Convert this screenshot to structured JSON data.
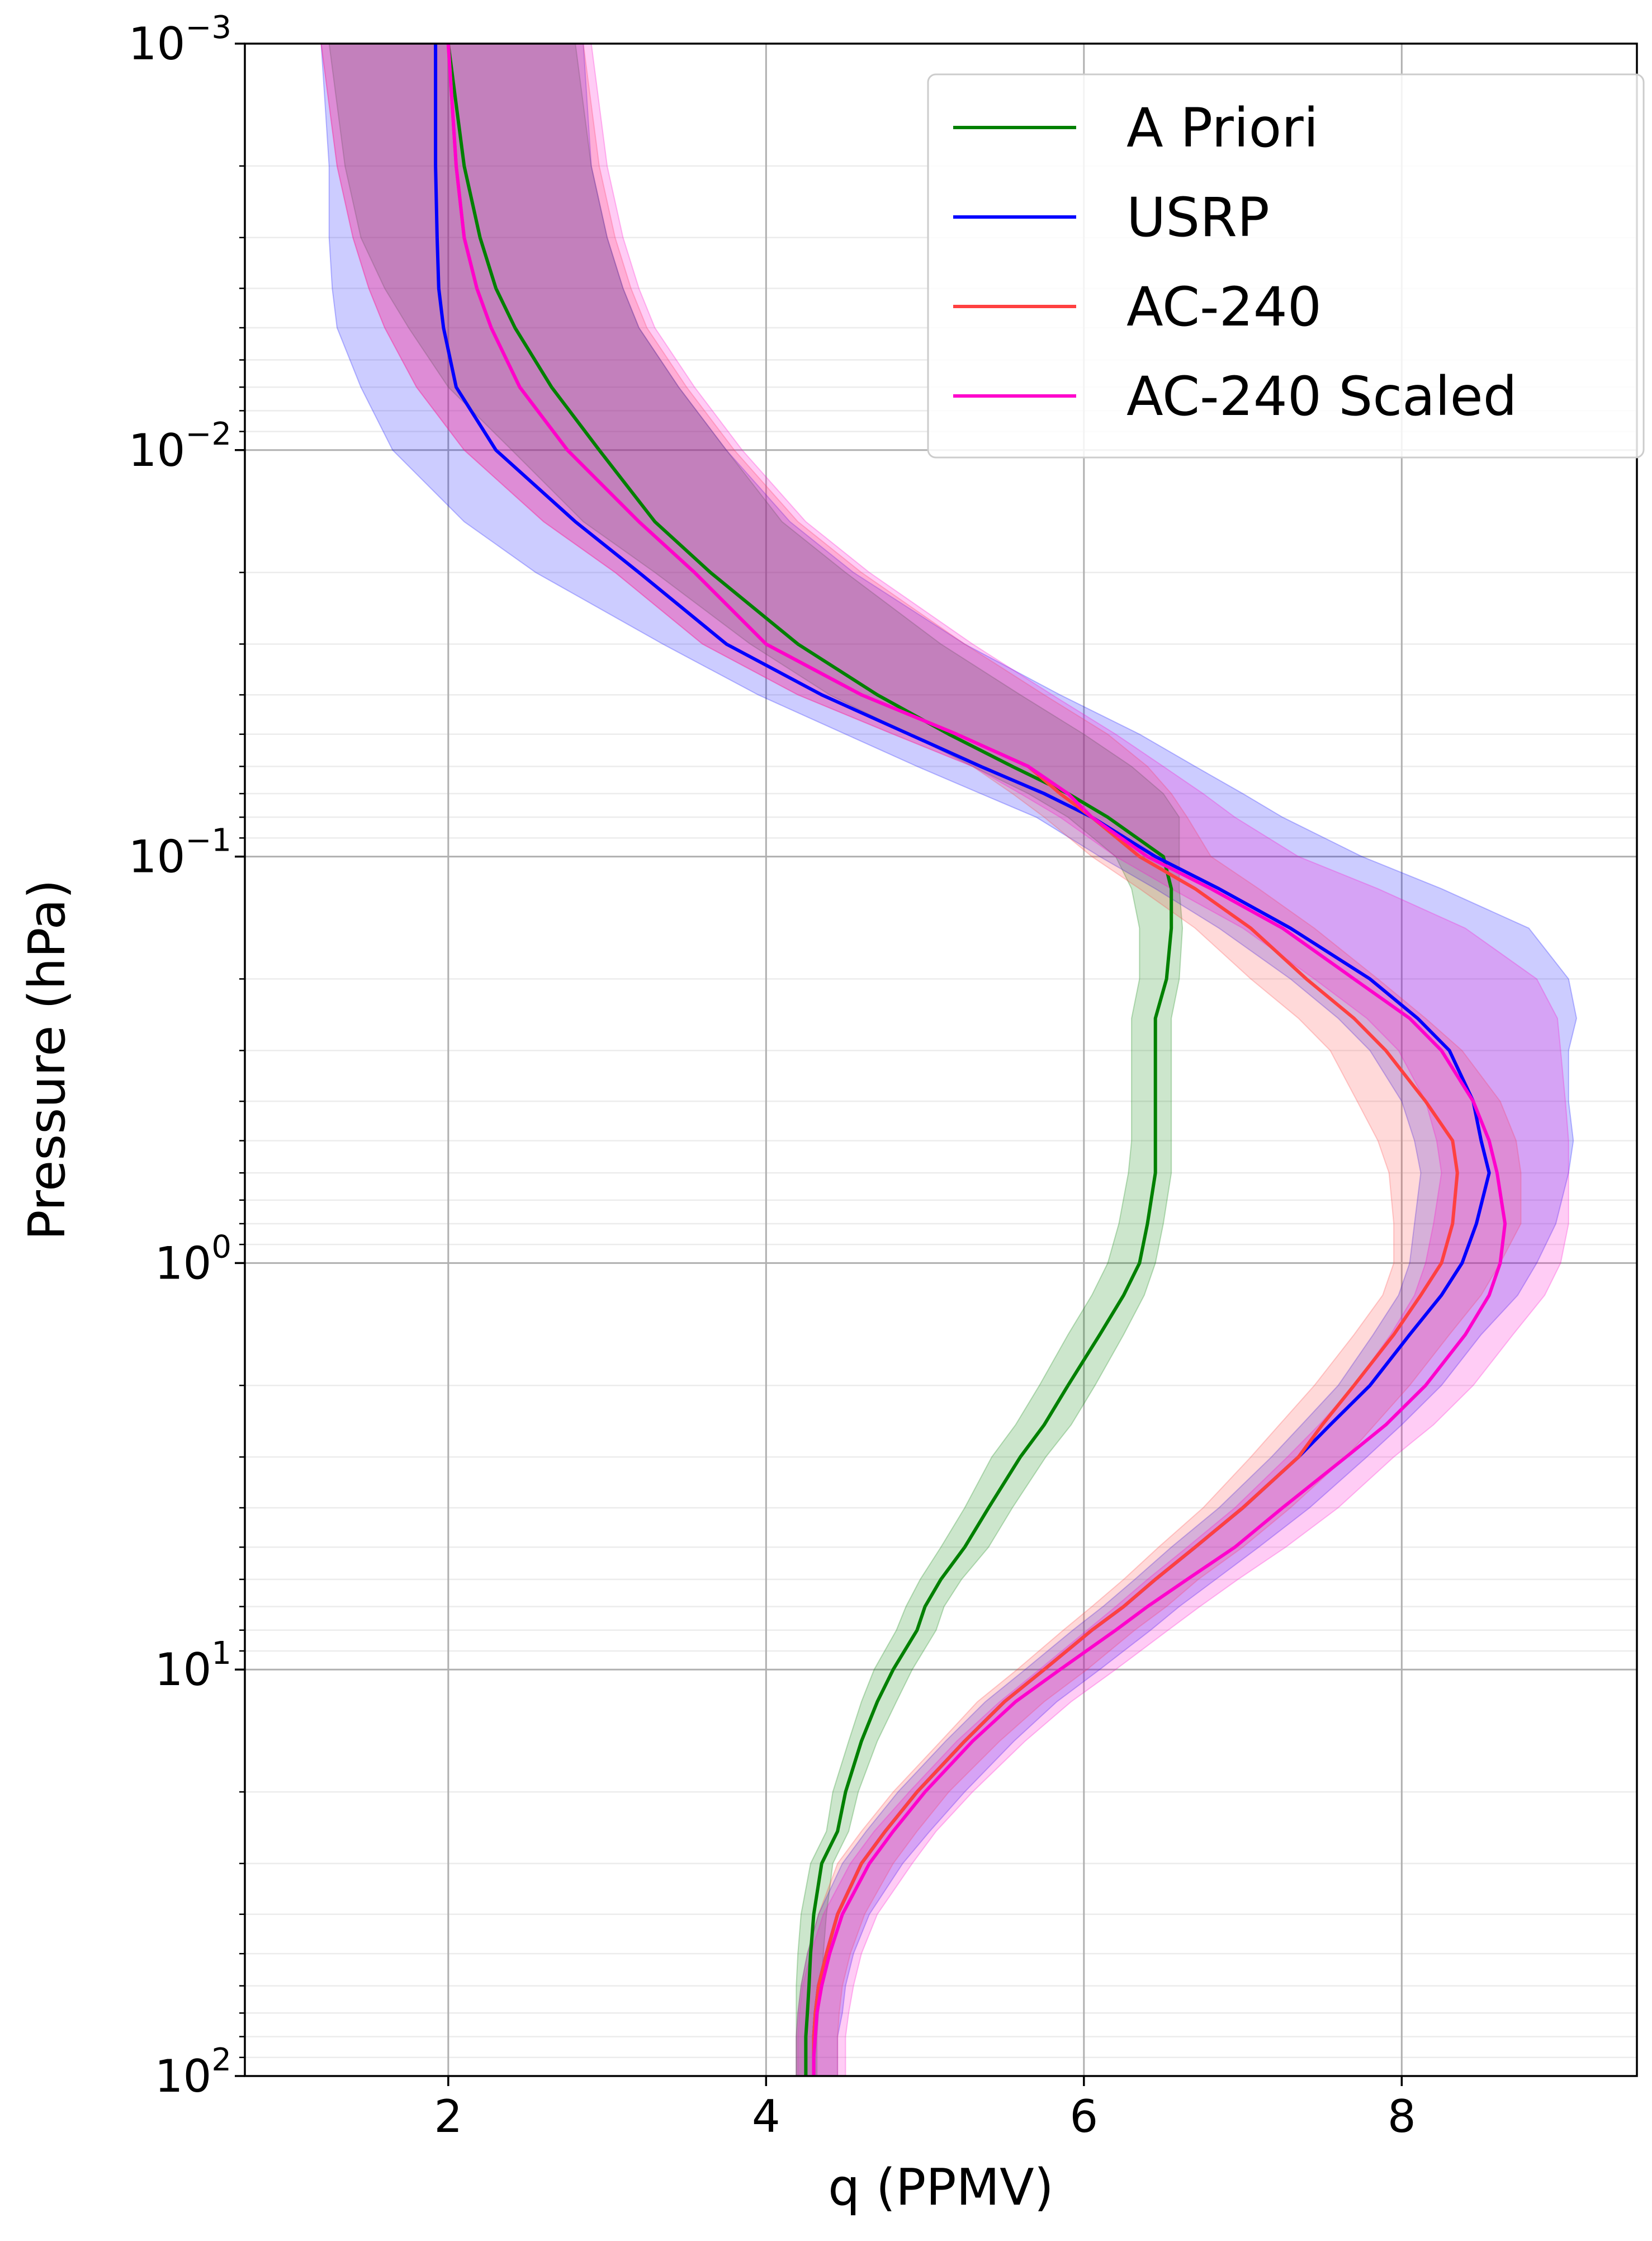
{
  "chart_data": {
    "type": "line",
    "xlabel": "q (PPMV)",
    "ylabel": "Pressure (hPa)",
    "xlim": [
      0.72,
      9.48
    ],
    "ylim": [
      100,
      0.001
    ],
    "y_scale": "log",
    "grid": true,
    "legend_position": "top-right",
    "x_ticks": [
      2,
      4,
      6,
      8
    ],
    "y_tick_values": [
      0.001,
      0.01,
      0.1,
      1,
      10,
      100
    ],
    "y_tick_exponents": [
      "−3",
      "−2",
      "−1",
      "0",
      "1",
      "2"
    ],
    "y_tick_base": "10",
    "pressure": [
      0.001,
      0.002,
      0.003,
      0.004,
      0.005,
      0.007,
      0.01,
      0.015,
      0.02,
      0.03,
      0.04,
      0.05,
      0.06,
      0.07,
      0.08,
      0.1,
      0.12,
      0.15,
      0.2,
      0.25,
      0.3,
      0.4,
      0.5,
      0.6,
      0.8,
      1,
      1.2,
      1.5,
      2,
      2.5,
      3,
      4,
      5,
      6,
      7,
      8,
      10,
      12,
      15,
      20,
      25,
      30,
      40,
      50,
      60,
      70,
      80,
      90,
      100
    ],
    "series": [
      {
        "name": "A Priori",
        "color": "#008000",
        "values": [
          2.0,
          2.1,
          2.2,
          2.3,
          2.42,
          2.65,
          2.95,
          3.3,
          3.65,
          4.2,
          4.7,
          5.15,
          5.55,
          5.9,
          6.15,
          6.5,
          6.55,
          6.55,
          6.52,
          6.45,
          6.45,
          6.45,
          6.45,
          6.45,
          6.4,
          6.35,
          6.25,
          6.1,
          5.9,
          5.75,
          5.6,
          5.4,
          5.25,
          5.1,
          5.0,
          4.95,
          4.8,
          4.7,
          4.6,
          4.5,
          4.45,
          4.35,
          4.3,
          4.28,
          4.27,
          4.26,
          4.25,
          4.25,
          4.25
        ],
        "band_low": [
          1.25,
          1.35,
          1.45,
          1.6,
          1.75,
          2.0,
          2.4,
          2.85,
          3.3,
          3.9,
          4.4,
          4.9,
          5.3,
          5.65,
          5.9,
          6.2,
          6.3,
          6.35,
          6.35,
          6.3,
          6.3,
          6.3,
          6.3,
          6.28,
          6.22,
          6.15,
          6.05,
          5.9,
          5.72,
          5.57,
          5.42,
          5.25,
          5.1,
          4.97,
          4.88,
          4.82,
          4.68,
          4.6,
          4.52,
          4.42,
          4.38,
          4.28,
          4.22,
          4.2,
          4.19,
          4.19,
          4.19,
          4.19,
          4.19
        ],
        "band_high": [
          2.8,
          2.9,
          3.0,
          3.1,
          3.2,
          3.45,
          3.75,
          4.1,
          4.5,
          5.1,
          5.6,
          6.0,
          6.3,
          6.5,
          6.6,
          6.6,
          6.6,
          6.62,
          6.6,
          6.55,
          6.55,
          6.55,
          6.55,
          6.55,
          6.5,
          6.45,
          6.38,
          6.25,
          6.07,
          5.92,
          5.76,
          5.55,
          5.4,
          5.23,
          5.12,
          5.07,
          4.92,
          4.82,
          4.7,
          4.58,
          4.52,
          4.42,
          4.38,
          4.36,
          4.35,
          4.33,
          4.32,
          4.32,
          4.32
        ]
      },
      {
        "name": "USRP",
        "color": "#0000ff",
        "values": [
          1.92,
          1.92,
          1.93,
          1.94,
          1.97,
          2.05,
          2.3,
          2.8,
          3.2,
          3.75,
          4.35,
          4.9,
          5.35,
          5.75,
          6.05,
          6.45,
          6.85,
          7.3,
          7.8,
          8.1,
          8.3,
          8.45,
          8.5,
          8.55,
          8.47,
          8.38,
          8.25,
          8.05,
          7.8,
          7.55,
          7.35,
          7.0,
          6.7,
          6.45,
          6.25,
          6.05,
          5.75,
          5.5,
          5.25,
          4.95,
          4.75,
          4.6,
          4.45,
          4.38,
          4.33,
          4.31,
          4.3,
          4.3,
          4.3
        ],
        "band_low": [
          1.2,
          1.25,
          1.25,
          1.27,
          1.3,
          1.45,
          1.65,
          2.1,
          2.55,
          3.35,
          3.95,
          4.5,
          4.95,
          5.35,
          5.7,
          6.1,
          6.45,
          6.85,
          7.3,
          7.6,
          7.8,
          8.0,
          8.08,
          8.12,
          8.08,
          8.05,
          7.98,
          7.82,
          7.6,
          7.37,
          7.18,
          6.85,
          6.55,
          6.32,
          6.12,
          5.93,
          5.63,
          5.38,
          5.13,
          4.83,
          4.63,
          4.48,
          4.33,
          4.26,
          4.22,
          4.2,
          4.19,
          4.19,
          4.19
        ],
        "band_high": [
          2.85,
          2.9,
          3.0,
          3.1,
          3.2,
          3.45,
          3.75,
          4.15,
          4.55,
          5.25,
          5.85,
          6.35,
          6.7,
          7.0,
          7.25,
          7.75,
          8.25,
          8.8,
          9.05,
          9.1,
          9.05,
          9.05,
          9.08,
          9.05,
          8.97,
          8.85,
          8.73,
          8.5,
          8.25,
          8.0,
          7.78,
          7.42,
          7.1,
          6.83,
          6.6,
          6.42,
          6.1,
          5.83,
          5.56,
          5.25,
          5.03,
          4.86,
          4.65,
          4.55,
          4.5,
          4.48,
          4.45,
          4.45,
          4.45
        ]
      },
      {
        "name": "AC-240",
        "color": "#ff4040",
        "values": [
          2.0,
          2.05,
          2.1,
          2.18,
          2.27,
          2.45,
          2.75,
          3.2,
          3.55,
          4.0,
          4.6,
          5.2,
          5.65,
          5.85,
          6.05,
          6.35,
          6.7,
          7.05,
          7.4,
          7.7,
          7.9,
          8.15,
          8.32,
          8.35,
          8.32,
          8.25,
          8.12,
          7.95,
          7.7,
          7.5,
          7.35,
          7.0,
          6.7,
          6.45,
          6.25,
          6.05,
          5.75,
          5.5,
          5.25,
          4.95,
          4.75,
          4.6,
          4.45,
          4.38,
          4.33,
          4.31,
          4.3,
          4.3,
          4.3
        ],
        "band_low": [
          1.2,
          1.3,
          1.4,
          1.5,
          1.6,
          1.8,
          2.1,
          2.6,
          3.05,
          3.6,
          4.2,
          4.8,
          5.3,
          5.55,
          5.75,
          6.05,
          6.35,
          6.7,
          7.05,
          7.35,
          7.55,
          7.72,
          7.85,
          7.92,
          7.95,
          7.95,
          7.88,
          7.7,
          7.45,
          7.23,
          7.05,
          6.75,
          6.47,
          6.25,
          6.05,
          5.87,
          5.58,
          5.33,
          5.1,
          4.8,
          4.6,
          4.45,
          4.33,
          4.26,
          4.22,
          4.2,
          4.19,
          4.19,
          4.19
        ],
        "band_high": [
          2.85,
          2.95,
          3.05,
          3.15,
          3.25,
          3.5,
          3.8,
          4.2,
          4.6,
          5.25,
          5.75,
          6.15,
          6.4,
          6.55,
          6.65,
          6.8,
          7.1,
          7.45,
          7.85,
          8.15,
          8.38,
          8.62,
          8.72,
          8.75,
          8.75,
          8.62,
          8.5,
          8.3,
          8.05,
          7.83,
          7.65,
          7.3,
          7.0,
          6.72,
          6.52,
          6.32,
          6.02,
          5.75,
          5.47,
          5.15,
          4.95,
          4.8,
          4.62,
          4.53,
          4.48,
          4.46,
          4.45,
          4.45,
          4.45
        ]
      },
      {
        "name": "AC-240 Scaled",
        "color": "#ff00cc",
        "values": [
          2.0,
          2.05,
          2.1,
          2.18,
          2.27,
          2.45,
          2.75,
          3.2,
          3.55,
          4.0,
          4.6,
          5.2,
          5.65,
          5.9,
          6.05,
          6.4,
          6.8,
          7.25,
          7.7,
          8.05,
          8.25,
          8.45,
          8.55,
          8.6,
          8.65,
          8.62,
          8.55,
          8.4,
          8.15,
          7.9,
          7.65,
          7.25,
          6.95,
          6.65,
          6.4,
          6.2,
          5.85,
          5.57,
          5.3,
          5.0,
          4.8,
          4.65,
          4.48,
          4.4,
          4.35,
          4.32,
          4.31,
          4.3,
          4.3
        ],
        "band_low": [
          1.2,
          1.3,
          1.4,
          1.5,
          1.6,
          1.8,
          2.1,
          2.6,
          3.05,
          3.6,
          4.2,
          4.8,
          5.3,
          5.6,
          5.85,
          6.2,
          6.55,
          7.0,
          7.45,
          7.78,
          7.98,
          8.15,
          8.22,
          8.25,
          8.2,
          8.15,
          8.08,
          7.93,
          7.7,
          7.48,
          7.28,
          6.95,
          6.65,
          6.4,
          6.2,
          6.02,
          5.72,
          5.47,
          5.2,
          4.9,
          4.68,
          4.53,
          4.36,
          4.28,
          4.23,
          4.21,
          4.2,
          4.2,
          4.2
        ],
        "band_high": [
          2.9,
          3.0,
          3.1,
          3.2,
          3.3,
          3.55,
          3.85,
          4.25,
          4.65,
          5.3,
          5.8,
          6.2,
          6.5,
          6.75,
          6.95,
          7.35,
          7.85,
          8.4,
          8.85,
          8.98,
          9.0,
          9.03,
          9.05,
          9.05,
          9.05,
          9.0,
          8.9,
          8.7,
          8.45,
          8.2,
          7.95,
          7.6,
          7.27,
          6.97,
          6.73,
          6.53,
          6.2,
          5.92,
          5.63,
          5.3,
          5.07,
          4.92,
          4.7,
          4.6,
          4.55,
          4.52,
          4.5,
          4.5,
          4.5
        ]
      }
    ]
  }
}
